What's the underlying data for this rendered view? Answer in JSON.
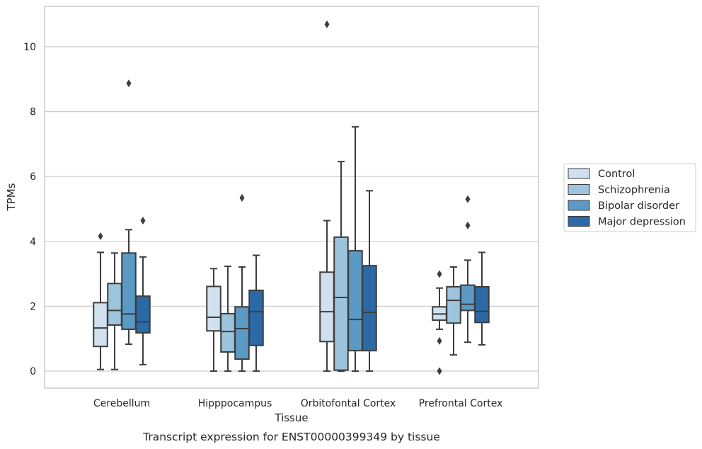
{
  "chart_data": {
    "type": "box",
    "xlabel": "Tissue",
    "ylabel": "TPMs",
    "caption": "Transcript expression for ENST00000399349 by tissue",
    "ylim": [
      -0.5,
      11.3
    ],
    "yticks": [
      0,
      2,
      4,
      6,
      8,
      10
    ],
    "grid": "horizontal",
    "legend_placement": "right",
    "categories": [
      "Cerebellum",
      "Hipppocampus",
      "Orbitofontal Cortex",
      "Prefrontal Cortex"
    ],
    "series": [
      {
        "name": "Control",
        "color": "#d0e0ef",
        "boxes": [
          {
            "whisker_low": 0.05,
            "q1": 0.76,
            "median": 1.33,
            "q3": 2.11,
            "whisker_high": 3.66,
            "outliers": [
              4.16
            ]
          },
          {
            "whisker_low": 0.0,
            "q1": 1.24,
            "median": 1.66,
            "q3": 2.61,
            "whisker_high": 3.16,
            "outliers": []
          },
          {
            "whisker_low": 0.0,
            "q1": 0.91,
            "median": 1.83,
            "q3": 3.05,
            "whisker_high": 4.64,
            "outliers": [
              10.69
            ]
          },
          {
            "whisker_low": 1.29,
            "q1": 1.57,
            "median": 1.76,
            "q3": 1.98,
            "whisker_high": 2.56,
            "outliers": [
              2.99,
              0.93,
              0.0
            ]
          }
        ]
      },
      {
        "name": "Schizophrenia",
        "color": "#9dc4dd",
        "boxes": [
          {
            "whisker_low": 0.05,
            "q1": 1.42,
            "median": 1.87,
            "q3": 2.7,
            "whisker_high": 3.64,
            "outliers": []
          },
          {
            "whisker_low": 0.0,
            "q1": 0.59,
            "median": 1.22,
            "q3": 1.77,
            "whisker_high": 3.23,
            "outliers": []
          },
          {
            "whisker_low": 0.0,
            "q1": 0.03,
            "median": 2.27,
            "q3": 4.13,
            "whisker_high": 6.46,
            "outliers": []
          },
          {
            "whisker_low": 0.5,
            "q1": 1.48,
            "median": 2.18,
            "q3": 2.6,
            "whisker_high": 3.21,
            "outliers": []
          }
        ]
      },
      {
        "name": "Bipolar disorder",
        "color": "#5b9ac5",
        "boxes": [
          {
            "whisker_low": 0.83,
            "q1": 1.29,
            "median": 1.76,
            "q3": 3.64,
            "whisker_high": 4.36,
            "outliers": [
              8.87
            ]
          },
          {
            "whisker_low": 0.0,
            "q1": 0.37,
            "median": 1.31,
            "q3": 1.98,
            "whisker_high": 3.21,
            "outliers": [
              5.34
            ]
          },
          {
            "whisker_low": 0.0,
            "q1": 0.63,
            "median": 1.59,
            "q3": 3.71,
            "whisker_high": 7.53,
            "outliers": []
          },
          {
            "whisker_low": 0.89,
            "q1": 1.87,
            "median": 2.06,
            "q3": 2.65,
            "whisker_high": 3.42,
            "outliers": [
              5.3,
              4.49
            ]
          }
        ]
      },
      {
        "name": "Major depression",
        "color": "#2b6aa6",
        "boxes": [
          {
            "whisker_low": 0.2,
            "q1": 1.18,
            "median": 1.52,
            "q3": 2.31,
            "whisker_high": 3.52,
            "outliers": [
              4.64
            ]
          },
          {
            "whisker_low": 0.0,
            "q1": 0.79,
            "median": 1.83,
            "q3": 2.49,
            "whisker_high": 3.57,
            "outliers": []
          },
          {
            "whisker_low": 0.0,
            "q1": 0.63,
            "median": 1.81,
            "q3": 3.25,
            "whisker_high": 5.56,
            "outliers": []
          },
          {
            "whisker_low": 0.81,
            "q1": 1.5,
            "median": 1.84,
            "q3": 2.6,
            "whisker_high": 3.66,
            "outliers": []
          }
        ]
      }
    ],
    "colors": {
      "grid": "#cccccc",
      "frame": "#cccccc",
      "box_edge": "#3d3d3d",
      "whisker": "#3d3d3d"
    }
  }
}
